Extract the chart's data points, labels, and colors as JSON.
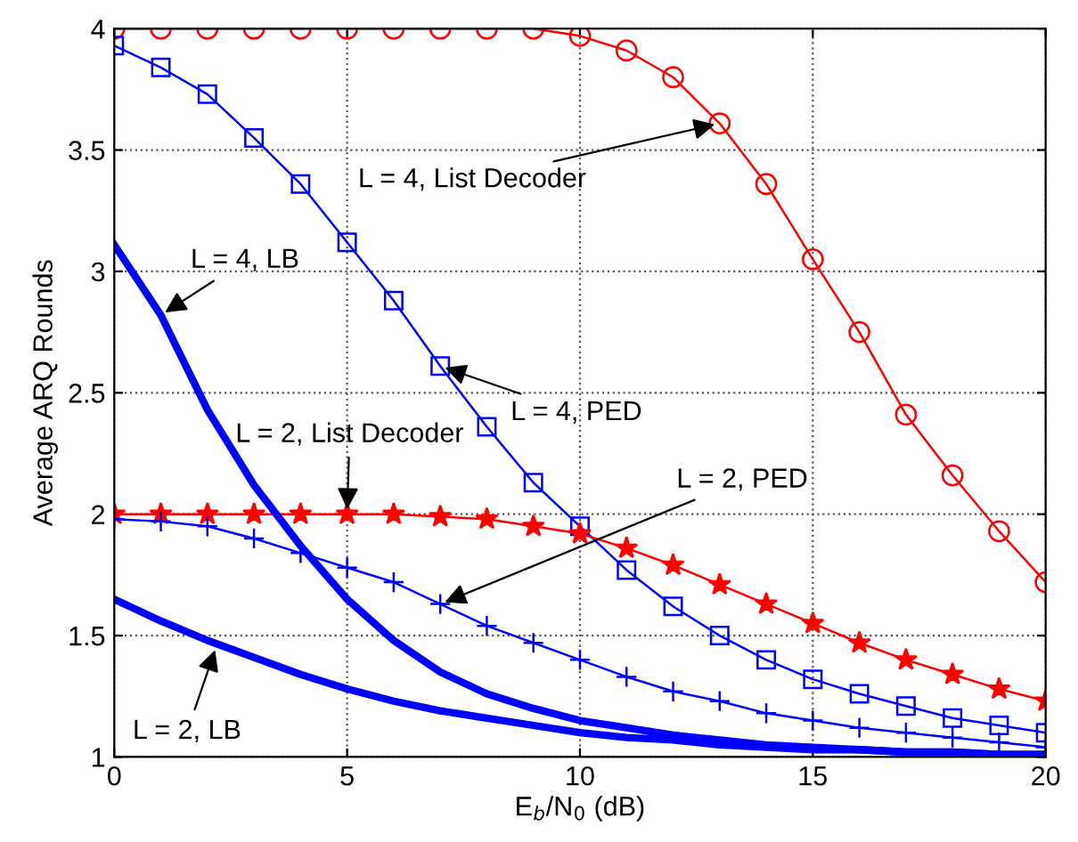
{
  "chart_data": {
    "type": "line",
    "xlabel": "E$_{b}$/N$_{0}$ (dB)",
    "ylabel": "Average ARQ Rounds",
    "xlim": [
      0,
      20
    ],
    "ylim": [
      1,
      4
    ],
    "xticks": [
      0,
      5,
      10,
      15,
      20
    ],
    "yticks": [
      1,
      1.5,
      2,
      2.5,
      3,
      3.5,
      4
    ],
    "grid": true,
    "line_style": "solid",
    "x": [
      0,
      1,
      2,
      3,
      4,
      5,
      6,
      7,
      8,
      9,
      10,
      11,
      12,
      13,
      14,
      15,
      16,
      17,
      18,
      19,
      20
    ],
    "series": [
      {
        "color": "#ff0000",
        "marker": "circle",
        "values": [
          4.0,
          4.0,
          4.0,
          4.0,
          4.0,
          4.0,
          4.0,
          4.0,
          4.0,
          4.0,
          3.97,
          3.91,
          3.8,
          3.61,
          3.36,
          3.05,
          2.75,
          2.41,
          2.16,
          1.93,
          1.72
        ]
      },
      {
        "color": "#0000ff",
        "marker": "square",
        "values": [
          3.93,
          3.84,
          3.73,
          3.55,
          3.36,
          3.12,
          2.88,
          2.61,
          2.36,
          2.13,
          1.95,
          1.77,
          1.62,
          1.5,
          1.4,
          1.32,
          1.26,
          1.21,
          1.16,
          1.13,
          1.1
        ]
      },
      {
        "color": "#ff0000",
        "marker": "star",
        "values": [
          2.0,
          2.0,
          2.0,
          2.0,
          2.0,
          2.0,
          2.0,
          1.99,
          1.98,
          1.95,
          1.92,
          1.86,
          1.79,
          1.71,
          1.63,
          1.55,
          1.47,
          1.4,
          1.34,
          1.28,
          1.23
        ]
      },
      {
        "color": "#0000ff",
        "marker": "cross",
        "values": [
          1.98,
          1.97,
          1.95,
          1.9,
          1.84,
          1.78,
          1.72,
          1.63,
          1.54,
          1.47,
          1.4,
          1.33,
          1.27,
          1.23,
          1.18,
          1.15,
          1.12,
          1.1,
          1.08,
          1.06,
          1.04
        ]
      },
      {
        "color": "#0000ff",
        "marker": "none",
        "values": [
          3.11,
          2.82,
          2.43,
          2.12,
          1.87,
          1.65,
          1.48,
          1.35,
          1.26,
          1.2,
          1.15,
          1.12,
          1.09,
          1.07,
          1.05,
          1.04,
          1.03,
          1.02,
          1.02,
          1.01,
          1.01
        ]
      },
      {
        "color": "#0000ff",
        "marker": "none",
        "values": [
          1.65,
          1.56,
          1.48,
          1.41,
          1.34,
          1.28,
          1.23,
          1.19,
          1.16,
          1.13,
          1.1,
          1.08,
          1.07,
          1.05,
          1.04,
          1.03,
          1.03,
          1.02,
          1.02,
          1.01,
          1.01
        ]
      }
    ],
    "annotations": [
      {
        "text": "L = 4, List Decoder",
        "x": 13,
        "y": 3.61
      },
      {
        "text": "L = 4, PED",
        "x": 7,
        "y": 2.61
      },
      {
        "text": "L = 4, LB",
        "x": 1,
        "y": 2.82
      },
      {
        "text": "L = 2, List Decoder",
        "x": 5,
        "y": 2.0
      },
      {
        "text": "L = 2, PED",
        "x": 7,
        "y": 1.63
      },
      {
        "text": "L = 2, LB",
        "x": 2.2,
        "y": 1.46
      }
    ]
  }
}
